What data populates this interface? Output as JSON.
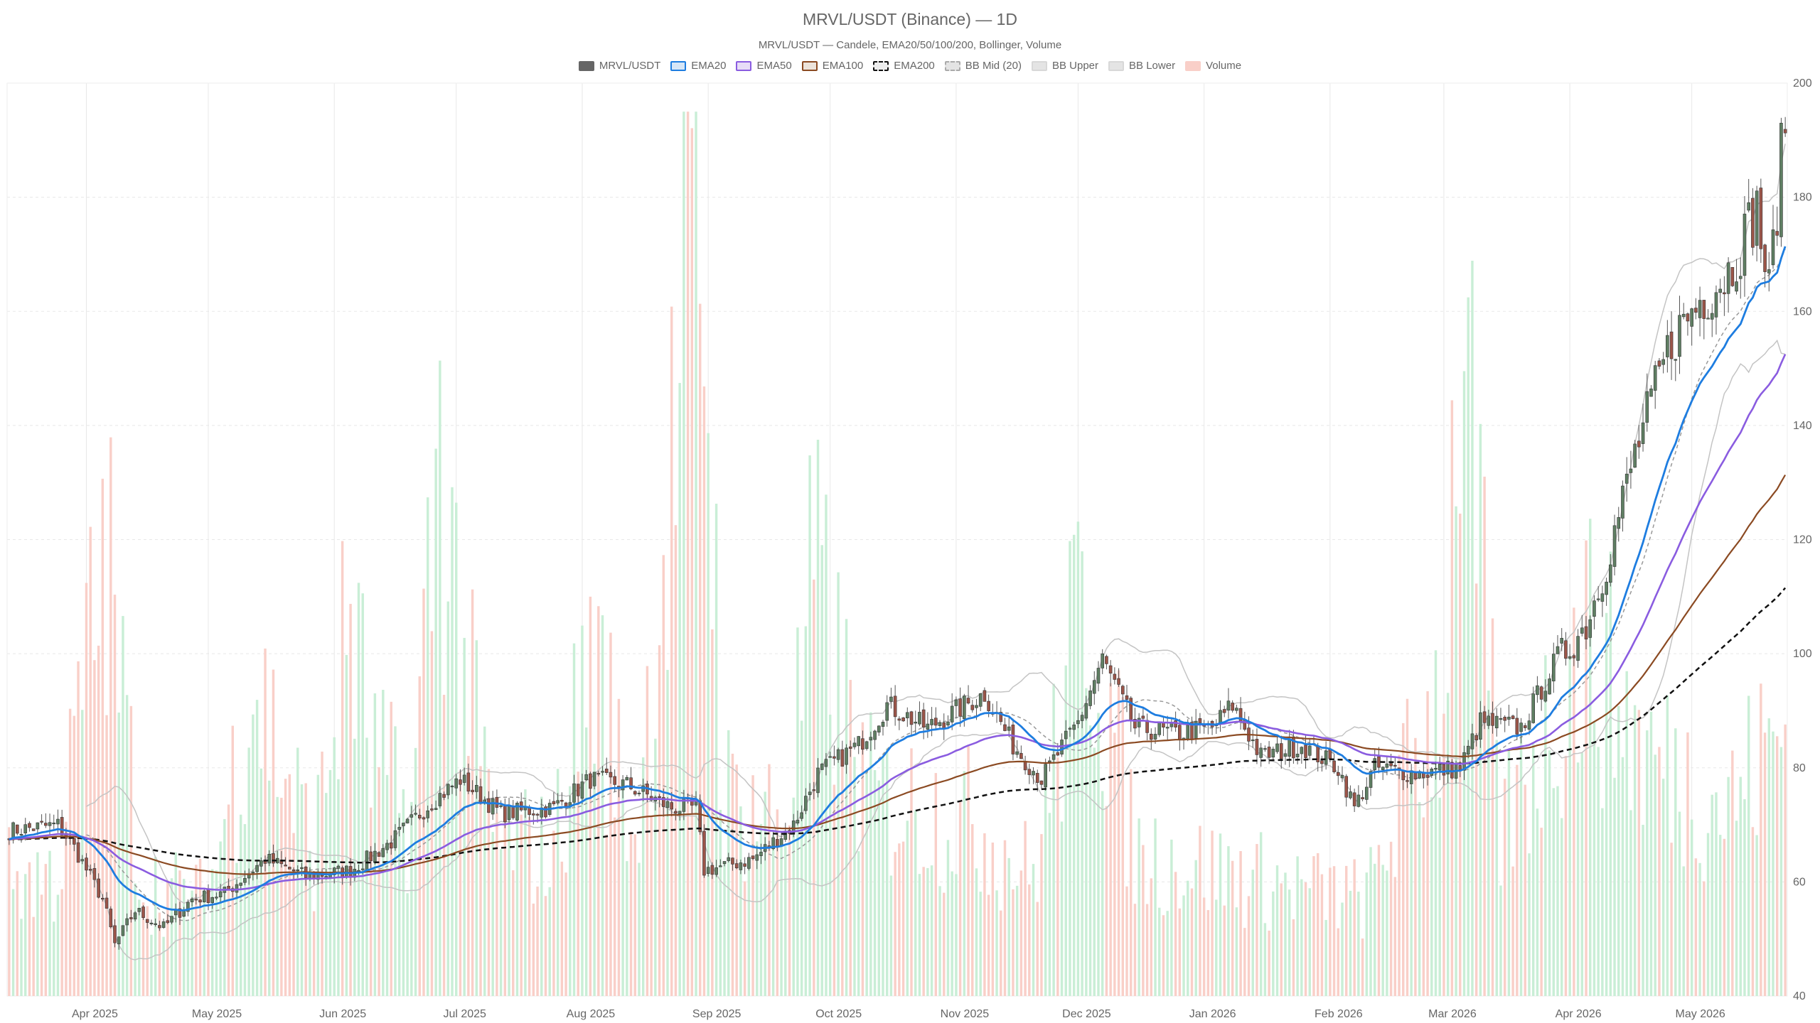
{
  "title": "MRVL/USDT (Binance) — 1D",
  "subtitle": "MRVL/USDT — Candele, EMA20/50/100/200, Bollinger, Volume",
  "colors": {
    "up": "#5f7f63",
    "down": "#9c5549",
    "wick": "#555555",
    "ema20": "#1e7de0",
    "ema50": "#8a5ce0",
    "ema100": "#8b4a22",
    "ema200": "#111111",
    "bb_mid": "#999999",
    "bb_band": "#c4c4c4",
    "vol_up": "#c9eed6",
    "vol_down": "#f9cfc8",
    "grid": "#e8e8e8"
  },
  "legend": [
    {
      "label": "MRVL/USDT",
      "fill": "#666666",
      "border": "#666666",
      "dashed": false
    },
    {
      "label": "EMA20",
      "fill": "#d6e6f7",
      "border": "#1e7de0",
      "dashed": false
    },
    {
      "label": "EMA50",
      "fill": "#e7dcf7",
      "border": "#8a5ce0",
      "dashed": false
    },
    {
      "label": "EMA100",
      "fill": "#ede3da",
      "border": "#8b4a22",
      "dashed": false
    },
    {
      "label": "EMA200",
      "fill": "#eeeeee",
      "border": "#111111",
      "dashed": true
    },
    {
      "label": "BB Mid (20)",
      "fill": "#e4e4e4",
      "border": "#aaaaaa",
      "dashed": true
    },
    {
      "label": "BB Upper",
      "fill": "#e4e4e4",
      "border": "#d8d8d8",
      "dashed": false
    },
    {
      "label": "BB Lower",
      "fill": "#e4e4e4",
      "border": "#d8d8d8",
      "dashed": false
    },
    {
      "label": "Volume",
      "fill": "#f9cfc8",
      "border": "#f9cfc8",
      "dashed": false
    }
  ],
  "chart_data": {
    "type": "candlestick",
    "title": "MRVL/USDT (Binance) — 1D",
    "subtitle": "MRVL/USDT — Candele, EMA20/50/100/200, Bollinger, Volume",
    "x_start": "2025-03-13",
    "x_end": "2026-05-24",
    "x_ticks": [
      "Apr 2025",
      "May 2025",
      "Jun 2025",
      "Jul 2025",
      "Aug 2025",
      "Sep 2025",
      "Oct 2025",
      "Nov 2025",
      "Dec 2025",
      "Jan 2026",
      "Feb 2026",
      "Mar 2026",
      "Apr 2026",
      "May 2026"
    ],
    "x_tick_dates": [
      "2025-04-01",
      "2025-05-01",
      "2025-06-01",
      "2025-07-01",
      "2025-08-01",
      "2025-09-01",
      "2025-10-01",
      "2025-11-01",
      "2025-12-01",
      "2026-01-01",
      "2026-02-01",
      "2026-03-01",
      "2026-04-01",
      "2026-05-01"
    ],
    "y_axis": {
      "position": "right",
      "range": [
        40,
        200
      ],
      "ticks": [
        40,
        60,
        80,
        100,
        120,
        140,
        160,
        180,
        200
      ]
    },
    "grid": true,
    "legend_position": "top",
    "close_keypoints": [
      [
        "2025-03-13",
        69
      ],
      [
        "2025-03-25",
        70
      ],
      [
        "2025-03-29",
        66
      ],
      [
        "2025-04-05",
        57
      ],
      [
        "2025-04-08",
        49
      ],
      [
        "2025-04-13",
        55
      ],
      [
        "2025-04-20",
        52
      ],
      [
        "2025-04-27",
        57
      ],
      [
        "2025-05-05",
        58
      ],
      [
        "2025-05-15",
        64
      ],
      [
        "2025-05-25",
        61
      ],
      [
        "2025-06-05",
        62
      ],
      [
        "2025-06-15",
        67
      ],
      [
        "2025-06-25",
        74
      ],
      [
        "2025-07-02",
        78
      ],
      [
        "2025-07-12",
        72
      ],
      [
        "2025-07-25",
        73
      ],
      [
        "2025-08-03",
        78
      ],
      [
        "2025-08-12",
        77
      ],
      [
        "2025-08-23",
        73
      ],
      [
        "2025-08-29",
        73
      ],
      [
        "2025-08-31",
        62
      ],
      [
        "2025-09-12",
        64
      ],
      [
        "2025-09-22",
        70
      ],
      [
        "2025-09-28",
        79
      ],
      [
        "2025-10-08",
        84
      ],
      [
        "2025-10-15",
        91
      ],
      [
        "2025-10-25",
        87
      ],
      [
        "2025-11-01",
        90
      ],
      [
        "2025-11-08",
        93
      ],
      [
        "2025-11-15",
        84
      ],
      [
        "2025-11-22",
        78
      ],
      [
        "2025-12-01",
        88
      ],
      [
        "2025-12-07",
        99
      ],
      [
        "2025-12-15",
        87
      ],
      [
        "2025-12-25",
        86
      ],
      [
        "2026-01-03",
        87
      ],
      [
        "2026-01-08",
        91
      ],
      [
        "2026-01-15",
        82
      ],
      [
        "2026-01-25",
        84
      ],
      [
        "2026-02-03",
        80
      ],
      [
        "2026-02-07",
        73
      ],
      [
        "2026-02-12",
        80
      ],
      [
        "2026-02-22",
        79
      ],
      [
        "2026-03-05",
        80
      ],
      [
        "2026-03-10",
        88
      ],
      [
        "2026-03-20",
        87
      ],
      [
        "2026-03-28",
        98
      ],
      [
        "2026-04-05",
        105
      ],
      [
        "2026-04-10",
        116
      ],
      [
        "2026-04-17",
        135
      ],
      [
        "2026-04-26",
        155
      ],
      [
        "2026-05-03",
        162
      ],
      [
        "2026-05-10",
        167
      ],
      [
        "2026-05-17",
        178
      ],
      [
        "2026-05-20",
        163
      ],
      [
        "2026-05-24",
        195
      ]
    ],
    "volume_axis": {
      "range": [
        0,
        100
      ],
      "units": "percent of max"
    },
    "volume_keypoints": [
      [
        "2025-03-25",
        15
      ],
      [
        "2025-03-31",
        38
      ],
      [
        "2025-04-06",
        55
      ],
      [
        "2025-04-15",
        14
      ],
      [
        "2025-05-01",
        12
      ],
      [
        "2025-05-12",
        40
      ],
      [
        "2025-05-27",
        18
      ],
      [
        "2025-06-05",
        48
      ],
      [
        "2025-06-10",
        30
      ],
      [
        "2025-06-20",
        22
      ],
      [
        "2025-06-27",
        70
      ],
      [
        "2025-07-02",
        45
      ],
      [
        "2025-07-10",
        20
      ],
      [
        "2025-07-25",
        18
      ],
      [
        "2025-08-03",
        44
      ],
      [
        "2025-08-14",
        20
      ],
      [
        "2025-08-30",
        100
      ],
      [
        "2025-09-05",
        25
      ],
      [
        "2025-09-20",
        22
      ],
      [
        "2025-09-27",
        52
      ],
      [
        "2025-10-10",
        25
      ],
      [
        "2025-11-05",
        22
      ],
      [
        "2025-11-20",
        15
      ],
      [
        "2025-12-03",
        52
      ],
      [
        "2025-12-15",
        18
      ],
      [
        "2026-01-10",
        15
      ],
      [
        "2026-02-10",
        12
      ],
      [
        "2026-03-01",
        40
      ],
      [
        "2026-03-05",
        85
      ],
      [
        "2026-03-15",
        20
      ],
      [
        "2026-04-05",
        45
      ],
      [
        "2026-04-20",
        30
      ],
      [
        "2026-05-10",
        24
      ],
      [
        "2026-05-24",
        34
      ]
    ]
  }
}
